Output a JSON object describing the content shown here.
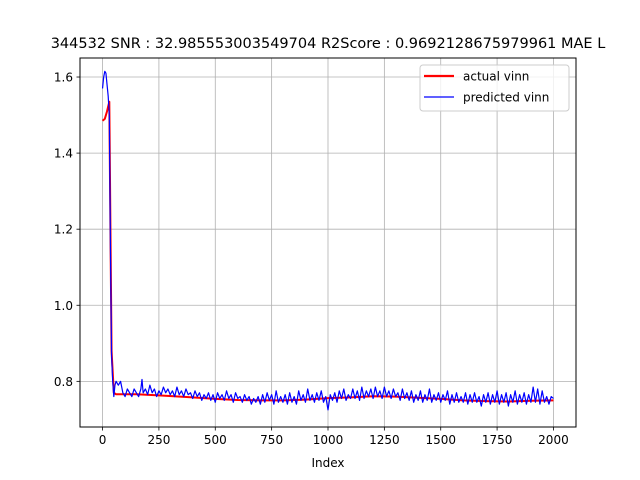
{
  "chart_data": {
    "type": "line",
    "title": "344532  SNR : 32.985553003549704 R2Score : 0.9692128675979961 MAE L",
    "xlabel": "Index",
    "ylabel": "",
    "xlim": [
      -100,
      2100
    ],
    "ylim": [
      0.68,
      1.65
    ],
    "xticks": [
      0,
      250,
      500,
      750,
      1000,
      1250,
      1500,
      1750,
      2000
    ],
    "xtick_labels": [
      "0",
      "250",
      "500",
      "750",
      "1000",
      "1250",
      "1500",
      "1750",
      "2000"
    ],
    "yticks": [
      0.8,
      1.0,
      1.2,
      1.4,
      1.6
    ],
    "ytick_labels": [
      "0.8",
      "1.0",
      "1.2",
      "1.4",
      "1.6"
    ],
    "grid": true,
    "legend_position": "top-right",
    "series": [
      {
        "name": "actual vinn",
        "color": "#ff0000",
        "points": [
          [
            0,
            1.485
          ],
          [
            10,
            1.49
          ],
          [
            20,
            1.51
          ],
          [
            30,
            1.535
          ],
          [
            35,
            1.2
          ],
          [
            40,
            0.88
          ],
          [
            50,
            0.77
          ],
          [
            60,
            0.766
          ],
          [
            150,
            0.766
          ],
          [
            250,
            0.763
          ],
          [
            400,
            0.758
          ],
          [
            500,
            0.754
          ],
          [
            600,
            0.751
          ],
          [
            700,
            0.75
          ],
          [
            800,
            0.75
          ],
          [
            900,
            0.752
          ],
          [
            1000,
            0.756
          ],
          [
            1100,
            0.758
          ],
          [
            1200,
            0.761
          ],
          [
            1300,
            0.76
          ],
          [
            1400,
            0.757
          ],
          [
            1500,
            0.754
          ],
          [
            1600,
            0.75
          ],
          [
            1700,
            0.748
          ],
          [
            1800,
            0.747
          ],
          [
            1900,
            0.749
          ],
          [
            2000,
            0.75
          ]
        ]
      },
      {
        "name": "predicted vinn",
        "color": "#0000ff",
        "points": [
          [
            0,
            1.57
          ],
          [
            5,
            1.6
          ],
          [
            10,
            1.615
          ],
          [
            15,
            1.61
          ],
          [
            20,
            1.58
          ],
          [
            25,
            1.55
          ],
          [
            30,
            1.5
          ],
          [
            35,
            1.15
          ],
          [
            40,
            0.87
          ],
          [
            45,
            0.8
          ],
          [
            50,
            0.76
          ],
          [
            55,
            0.79
          ],
          [
            60,
            0.8
          ],
          [
            70,
            0.79
          ],
          [
            80,
            0.8
          ],
          [
            90,
            0.77
          ],
          [
            100,
            0.76
          ],
          [
            110,
            0.78
          ],
          [
            120,
            0.77
          ],
          [
            130,
            0.76
          ],
          [
            140,
            0.78
          ],
          [
            150,
            0.77
          ],
          [
            160,
            0.76
          ],
          [
            170,
            0.78
          ],
          [
            175,
            0.805
          ],
          [
            180,
            0.77
          ],
          [
            190,
            0.78
          ],
          [
            200,
            0.765
          ],
          [
            210,
            0.79
          ],
          [
            220,
            0.77
          ],
          [
            230,
            0.78
          ],
          [
            240,
            0.76
          ],
          [
            250,
            0.775
          ],
          [
            260,
            0.765
          ],
          [
            270,
            0.785
          ],
          [
            280,
            0.77
          ],
          [
            290,
            0.78
          ],
          [
            300,
            0.765
          ],
          [
            310,
            0.775
          ],
          [
            320,
            0.76
          ],
          [
            330,
            0.785
          ],
          [
            340,
            0.765
          ],
          [
            350,
            0.775
          ],
          [
            360,
            0.76
          ],
          [
            370,
            0.78
          ],
          [
            380,
            0.765
          ],
          [
            390,
            0.77
          ],
          [
            400,
            0.755
          ],
          [
            410,
            0.775
          ],
          [
            420,
            0.76
          ],
          [
            430,
            0.77
          ],
          [
            440,
            0.75
          ],
          [
            450,
            0.765
          ],
          [
            460,
            0.755
          ],
          [
            470,
            0.77
          ],
          [
            480,
            0.75
          ],
          [
            490,
            0.765
          ],
          [
            500,
            0.745
          ],
          [
            510,
            0.77
          ],
          [
            520,
            0.755
          ],
          [
            530,
            0.765
          ],
          [
            540,
            0.75
          ],
          [
            550,
            0.775
          ],
          [
            560,
            0.755
          ],
          [
            570,
            0.765
          ],
          [
            580,
            0.745
          ],
          [
            590,
            0.77
          ],
          [
            600,
            0.755
          ],
          [
            610,
            0.76
          ],
          [
            620,
            0.745
          ],
          [
            630,
            0.765
          ],
          [
            640,
            0.75
          ],
          [
            650,
            0.76
          ],
          [
            660,
            0.74
          ],
          [
            670,
            0.755
          ],
          [
            680,
            0.745
          ],
          [
            690,
            0.76
          ],
          [
            700,
            0.74
          ],
          [
            710,
            0.765
          ],
          [
            720,
            0.745
          ],
          [
            730,
            0.77
          ],
          [
            740,
            0.75
          ],
          [
            750,
            0.765
          ],
          [
            760,
            0.74
          ],
          [
            770,
            0.775
          ],
          [
            780,
            0.745
          ],
          [
            790,
            0.76
          ],
          [
            800,
            0.745
          ],
          [
            810,
            0.765
          ],
          [
            820,
            0.74
          ],
          [
            830,
            0.77
          ],
          [
            840,
            0.745
          ],
          [
            850,
            0.76
          ],
          [
            860,
            0.74
          ],
          [
            870,
            0.775
          ],
          [
            880,
            0.75
          ],
          [
            890,
            0.765
          ],
          [
            900,
            0.745
          ],
          [
            910,
            0.78
          ],
          [
            920,
            0.75
          ],
          [
            930,
            0.765
          ],
          [
            940,
            0.745
          ],
          [
            950,
            0.77
          ],
          [
            960,
            0.75
          ],
          [
            970,
            0.775
          ],
          [
            980,
            0.745
          ],
          [
            990,
            0.76
          ],
          [
            1000,
            0.725
          ],
          [
            1010,
            0.765
          ],
          [
            1020,
            0.75
          ],
          [
            1030,
            0.77
          ],
          [
            1040,
            0.745
          ],
          [
            1050,
            0.775
          ],
          [
            1060,
            0.755
          ],
          [
            1070,
            0.78
          ],
          [
            1080,
            0.75
          ],
          [
            1090,
            0.765
          ],
          [
            1100,
            0.755
          ],
          [
            1110,
            0.78
          ],
          [
            1120,
            0.755
          ],
          [
            1130,
            0.775
          ],
          [
            1140,
            0.75
          ],
          [
            1150,
            0.785
          ],
          [
            1160,
            0.755
          ],
          [
            1170,
            0.775
          ],
          [
            1180,
            0.76
          ],
          [
            1190,
            0.78
          ],
          [
            1200,
            0.755
          ],
          [
            1210,
            0.785
          ],
          [
            1220,
            0.76
          ],
          [
            1230,
            0.775
          ],
          [
            1240,
            0.755
          ],
          [
            1250,
            0.785
          ],
          [
            1260,
            0.76
          ],
          [
            1270,
            0.775
          ],
          [
            1280,
            0.755
          ],
          [
            1290,
            0.78
          ],
          [
            1300,
            0.76
          ],
          [
            1310,
            0.77
          ],
          [
            1320,
            0.75
          ],
          [
            1330,
            0.78
          ],
          [
            1340,
            0.755
          ],
          [
            1350,
            0.77
          ],
          [
            1360,
            0.75
          ],
          [
            1370,
            0.775
          ],
          [
            1380,
            0.745
          ],
          [
            1390,
            0.765
          ],
          [
            1400,
            0.75
          ],
          [
            1410,
            0.775
          ],
          [
            1420,
            0.745
          ],
          [
            1430,
            0.765
          ],
          [
            1440,
            0.75
          ],
          [
            1450,
            0.78
          ],
          [
            1460,
            0.745
          ],
          [
            1470,
            0.765
          ],
          [
            1480,
            0.75
          ],
          [
            1490,
            0.77
          ],
          [
            1500,
            0.745
          ],
          [
            1510,
            0.765
          ],
          [
            1520,
            0.75
          ],
          [
            1530,
            0.775
          ],
          [
            1540,
            0.74
          ],
          [
            1550,
            0.765
          ],
          [
            1560,
            0.745
          ],
          [
            1570,
            0.77
          ],
          [
            1580,
            0.745
          ],
          [
            1590,
            0.76
          ],
          [
            1600,
            0.745
          ],
          [
            1610,
            0.77
          ],
          [
            1620,
            0.74
          ],
          [
            1630,
            0.765
          ],
          [
            1640,
            0.745
          ],
          [
            1650,
            0.77
          ],
          [
            1660,
            0.745
          ],
          [
            1670,
            0.76
          ],
          [
            1680,
            0.735
          ],
          [
            1690,
            0.765
          ],
          [
            1700,
            0.745
          ],
          [
            1710,
            0.77
          ],
          [
            1720,
            0.74
          ],
          [
            1730,
            0.765
          ],
          [
            1740,
            0.745
          ],
          [
            1750,
            0.775
          ],
          [
            1760,
            0.74
          ],
          [
            1770,
            0.765
          ],
          [
            1780,
            0.745
          ],
          [
            1790,
            0.77
          ],
          [
            1800,
            0.735
          ],
          [
            1810,
            0.765
          ],
          [
            1820,
            0.745
          ],
          [
            1830,
            0.775
          ],
          [
            1840,
            0.74
          ],
          [
            1850,
            0.765
          ],
          [
            1860,
            0.745
          ],
          [
            1870,
            0.77
          ],
          [
            1880,
            0.74
          ],
          [
            1890,
            0.765
          ],
          [
            1900,
            0.745
          ],
          [
            1910,
            0.785
          ],
          [
            1920,
            0.745
          ],
          [
            1930,
            0.78
          ],
          [
            1940,
            0.74
          ],
          [
            1950,
            0.775
          ],
          [
            1960,
            0.745
          ],
          [
            1970,
            0.76
          ],
          [
            1980,
            0.74
          ],
          [
            1990,
            0.76
          ],
          [
            2000,
            0.755
          ]
        ]
      }
    ]
  }
}
